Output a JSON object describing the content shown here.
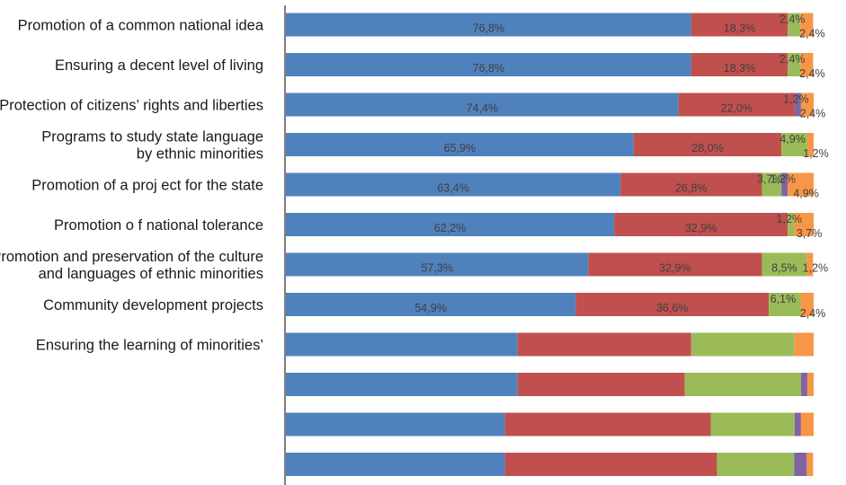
{
  "chart_data": {
    "type": "bar",
    "orientation": "horizontal",
    "stacked": true,
    "xlim": [
      0,
      100
    ],
    "grid": false,
    "legend": "none",
    "categories": [
      "Promotion of a common national idea",
      "Ensuring a decent level of living",
      "Protection of citizens’ rights and liberties",
      "Programs to study state language by ethnic minorities",
      "Promotion of a proj ect for the state",
      "Promotion o f national tolerance",
      "Promotion and preservation of the culture and languages of ethnic minorities",
      "Community development projects",
      "Ensuring the learning of minorities’",
      "",
      "",
      ""
    ],
    "category_lines": [
      [
        "Promotion of a common national idea"
      ],
      [
        "Ensuring a decent level of living"
      ],
      [
        "Protection of citizens’ rights and liberties"
      ],
      [
        "Programs to study state language",
        "by ethnic minorities"
      ],
      [
        "Promotion of a proj ect for the state"
      ],
      [
        "Promotion o f national tolerance"
      ],
      [
        "Promotion and preservation of the culture",
        "and languages of ethnic minorities"
      ],
      [
        "Community development projects"
      ],
      [
        "Ensuring the learning of minorities’"
      ],
      [],
      [],
      []
    ],
    "series": [
      {
        "color": "#4f81bd",
        "values": [
          76.8,
          76.8,
          74.4,
          65.9,
          63.4,
          62.2,
          57.3,
          54.9,
          43.9,
          43.9,
          41.5,
          41.5
        ]
      },
      {
        "color": "#c0504d",
        "values": [
          18.3,
          18.3,
          22.0,
          28.0,
          26.8,
          32.9,
          32.9,
          36.6,
          32.9,
          31.7,
          39.0,
          40.2
        ]
      },
      {
        "color": "#9bbb59",
        "values": [
          2.4,
          2.4,
          0,
          4.9,
          3.7,
          1.2,
          8.5,
          6.1,
          19.5,
          22.0,
          15.9,
          14.6
        ]
      },
      {
        "color": "#8064a2",
        "values": [
          0,
          0,
          1.2,
          0,
          1.2,
          0,
          0,
          0,
          0,
          1.2,
          1.2,
          2.4
        ]
      },
      {
        "color": "#f79646",
        "values": [
          2.4,
          2.4,
          2.4,
          1.2,
          4.9,
          3.7,
          1.2,
          2.4,
          3.7,
          1.2,
          2.4,
          1.2
        ]
      }
    ],
    "data_labels": [
      [
        "76,8%",
        "18,3%",
        "2,4%",
        "",
        "2,4%"
      ],
      [
        "76,8%",
        "18,3%",
        "2,4%",
        "",
        "2,4%"
      ],
      [
        "74,4%",
        "22,0%",
        "",
        "1,2%",
        "2,4%"
      ],
      [
        "65,9%",
        "28,0%",
        "4,9%",
        "",
        "1,2%"
      ],
      [
        "63,4%",
        "26,8%",
        "3,7%",
        "1,2%",
        "4,9%"
      ],
      [
        "62,2%",
        "32,9%",
        "1,2%",
        "",
        "3,7%"
      ],
      [
        "57,3%",
        "32,9%",
        "8,5%",
        "",
        "1,2%"
      ],
      [
        "54,9%",
        "36,6%",
        "6,1%",
        "",
        "2,4%"
      ],
      [
        "",
        "",
        "",
        "",
        ""
      ],
      [
        "",
        "",
        "",
        "",
        ""
      ],
      [
        "",
        "",
        "",
        "",
        ""
      ],
      [
        "",
        "",
        "",
        "",
        ""
      ]
    ]
  }
}
